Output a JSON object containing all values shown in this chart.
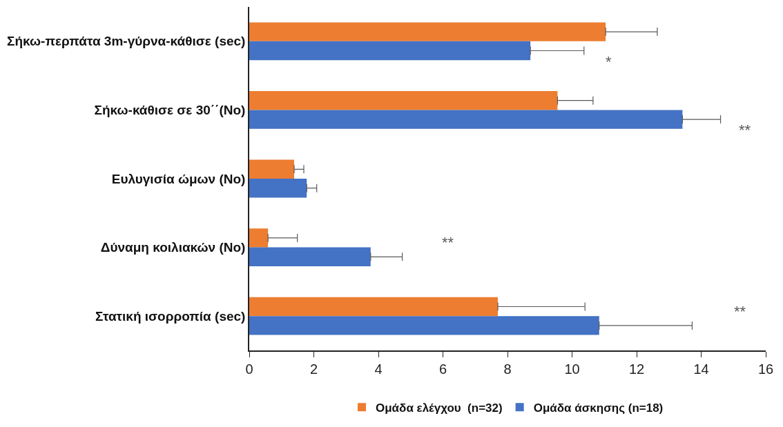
{
  "chart_data": {
    "type": "bar",
    "orientation": "horizontal",
    "categories": [
      "Σήκω-περπάτα 3m-γύρνα-κάθισε (sec)",
      "Σήκω-κάθισε σε 30΄΄(No)",
      "Ευλυγισία ώμων (No)",
      "Δύναμη κοιλιακών (No)",
      "Στατική ισορροπία (sec)"
    ],
    "series": [
      {
        "name": "Ομάδα ελέγχου  (n=32)",
        "color": "#ed7d31",
        "values": [
          11.04,
          9.55,
          1.39,
          0.58,
          7.7
        ],
        "errors": [
          [
            11.04,
            12.64
          ],
          [
            9.55,
            10.65
          ],
          [
            1.39,
            1.69
          ],
          [
            0.58,
            1.49
          ],
          [
            7.7,
            10.4
          ]
        ]
      },
      {
        "name": "Ομάδα άσκησης (n=18)",
        "color": "#4472c4",
        "values": [
          8.71,
          13.42,
          1.78,
          3.76,
          10.84
        ],
        "errors": [
          [
            8.71,
            10.37
          ],
          [
            13.42,
            14.6
          ],
          [
            1.78,
            2.09
          ],
          [
            3.76,
            4.74
          ],
          [
            10.84,
            13.72
          ]
        ]
      }
    ],
    "xlim": [
      0,
      16
    ],
    "xticks": [
      0,
      2,
      4,
      6,
      8,
      10,
      12,
      14,
      16
    ],
    "annotations": [
      "*",
      "**",
      "**",
      "**"
    ],
    "legend": "bottom"
  }
}
